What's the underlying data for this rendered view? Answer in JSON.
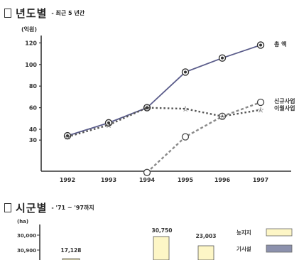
{
  "section1": {
    "title": "년도별",
    "subtitle": "- 최근 5 년간"
  },
  "section2": {
    "title": "시군별",
    "subtitle": "- '71 ~ '97까지"
  },
  "chart_data": [
    {
      "type": "line",
      "ylabel": "(억원)",
      "categories": [
        "1992",
        "1993",
        "1994",
        "1995",
        "1996",
        "1997"
      ],
      "y_ticks": [
        30,
        40,
        60,
        80,
        100,
        120
      ],
      "ylim": [
        20,
        125
      ],
      "grid": false,
      "series": [
        {
          "name": "총 액",
          "values": [
            34,
            46,
            60,
            93,
            106,
            118
          ],
          "color": "#5a5c8a",
          "style": "solid",
          "marker": "circle-dot"
        },
        {
          "name": "",
          "values": [
            null,
            null,
            0,
            33,
            52,
            65
          ],
          "color": "#8a8a8a",
          "style": "dashed",
          "marker": "open-circle"
        },
        {
          "name": "",
          "values": [
            33,
            44,
            60,
            59,
            52,
            58
          ],
          "color": "#555",
          "style": "dotted",
          "marker": "star"
        }
      ],
      "series_labels_right": [
        "총 액",
        "신규사업",
        "이월사업"
      ]
    },
    {
      "type": "bar",
      "ylabel": "(ha)",
      "y_tick_labels": [
        "30,000",
        "30,900"
      ],
      "value_labels": [
        "17,128",
        "30,750",
        "23,003"
      ],
      "legend": [
        {
          "name": "농지지",
          "color": "#fdf6c6"
        },
        {
          "name": "기시설",
          "color": "#8c91ad"
        }
      ],
      "legend_position": "right",
      "colors": {
        "bar": "#fdf6c6",
        "border": "#555"
      }
    }
  ]
}
